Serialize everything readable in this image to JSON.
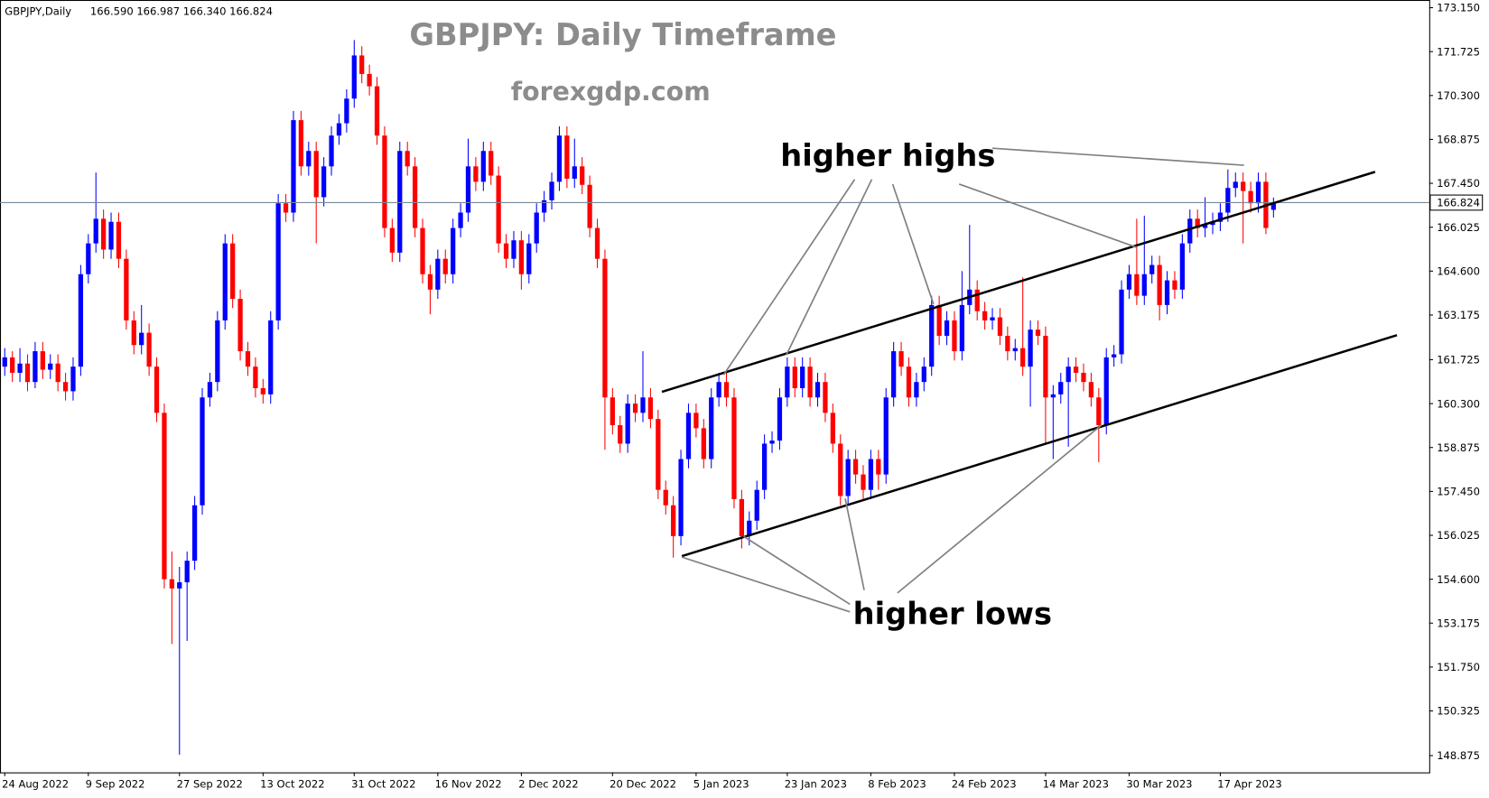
{
  "chart_data": {
    "type": "candlestick",
    "symbol": "GBPJPY,Daily",
    "header_prices": "166.590 166.987 166.340 166.824",
    "title": "GBPJPY: Daily Timeframe",
    "subtitle": "forexgdp.com",
    "annotations": [
      "higher highs",
      "higher lows"
    ],
    "up_color": "#0000ff",
    "down_color": "#ff0000",
    "current_price": 166.824,
    "ylim": [
      148.33,
      173.4
    ],
    "yticks": [
      {
        "value": 173.15,
        "label": "173.150"
      },
      171.725,
      {
        "value": 170.3,
        "label": "170.300"
      },
      168.875,
      {
        "value": 167.45,
        "label": "167.450"
      },
      166.025,
      {
        "value": 164.6,
        "label": "164.600"
      },
      163.175,
      161.725,
      {
        "value": 160.3,
        "label": "160.300"
      },
      158.875,
      {
        "value": 157.45,
        "label": "157.450"
      },
      156.025,
      {
        "value": 154.6,
        "label": "154.600"
      },
      153.175,
      {
        "value": 151.75,
        "label": "151.750"
      },
      150.325,
      148.875
    ],
    "categories": [
      "24 Aug 2022",
      null,
      null,
      null,
      null,
      null,
      null,
      null,
      null,
      null,
      null,
      "9 Sep 2022",
      null,
      null,
      null,
      null,
      null,
      null,
      null,
      null,
      null,
      null,
      null,
      "27 Sep 2022",
      null,
      null,
      null,
      null,
      null,
      null,
      null,
      null,
      null,
      null,
      "13 Oct 2022",
      null,
      null,
      null,
      null,
      null,
      null,
      null,
      null,
      null,
      null,
      null,
      "31 Oct 2022",
      null,
      null,
      null,
      null,
      null,
      null,
      null,
      null,
      null,
      null,
      "16 Nov 2022",
      null,
      null,
      null,
      null,
      null,
      null,
      null,
      null,
      null,
      null,
      "2 Dec 2022",
      null,
      null,
      null,
      null,
      null,
      null,
      null,
      null,
      null,
      null,
      null,
      "20 Dec 2022",
      null,
      null,
      null,
      null,
      null,
      null,
      null,
      null,
      null,
      null,
      "5 Jan 2023",
      null,
      null,
      null,
      null,
      null,
      null,
      null,
      null,
      null,
      null,
      null,
      "23 Jan 2023",
      null,
      null,
      null,
      null,
      null,
      null,
      null,
      null,
      null,
      null,
      "8 Feb 2023",
      null,
      null,
      null,
      null,
      null,
      null,
      null,
      null,
      null,
      null,
      "24 Feb 2023",
      null,
      null,
      null,
      null,
      null,
      null,
      null,
      null,
      null,
      null,
      null,
      "14 Mar 2023",
      null,
      null,
      null,
      null,
      null,
      null,
      null,
      null,
      null,
      null,
      "30 Mar 2023",
      null,
      null,
      null,
      null,
      null,
      null,
      null,
      null,
      null,
      null,
      null,
      "17 Apr 2023",
      null,
      null,
      null,
      null,
      null,
      null,
      null
    ],
    "ohlc": [
      [
        161.5,
        162.1,
        161.2,
        161.8
      ],
      [
        161.8,
        162.0,
        161.0,
        161.3
      ],
      [
        161.3,
        162.1,
        161.0,
        161.6
      ],
      [
        161.6,
        161.9,
        160.7,
        161.0
      ],
      [
        161.0,
        162.3,
        160.8,
        162.0
      ],
      [
        162.0,
        162.3,
        161.1,
        161.4
      ],
      [
        161.4,
        161.9,
        161.1,
        161.6
      ],
      [
        161.6,
        161.9,
        160.7,
        161.0
      ],
      [
        161.0,
        161.3,
        160.4,
        160.7
      ],
      [
        160.7,
        161.8,
        160.4,
        161.5
      ],
      [
        161.5,
        164.8,
        161.2,
        164.5
      ],
      [
        164.5,
        165.8,
        164.2,
        165.5
      ],
      [
        165.5,
        167.8,
        165.2,
        166.3
      ],
      [
        166.3,
        166.6,
        165.0,
        165.3
      ],
      [
        165.3,
        166.5,
        165.0,
        166.2
      ],
      [
        166.2,
        166.5,
        164.7,
        165.0
      ],
      [
        165.0,
        165.3,
        162.7,
        163.0
      ],
      [
        163.0,
        163.3,
        161.9,
        162.2
      ],
      [
        162.2,
        163.5,
        161.9,
        162.6
      ],
      [
        162.6,
        162.9,
        161.2,
        161.5
      ],
      [
        161.5,
        161.8,
        159.7,
        160.0
      ],
      [
        160.0,
        160.3,
        154.3,
        154.6
      ],
      [
        154.6,
        155.5,
        152.5,
        154.3
      ],
      [
        154.3,
        155.0,
        148.9,
        154.5
      ],
      [
        154.5,
        155.5,
        152.6,
        155.2
      ],
      [
        155.2,
        157.3,
        154.9,
        157.0
      ],
      [
        157.0,
        160.8,
        156.7,
        160.5
      ],
      [
        160.5,
        161.3,
        160.2,
        161.0
      ],
      [
        161.0,
        163.3,
        160.7,
        163.0
      ],
      [
        163.0,
        165.8,
        162.7,
        165.5
      ],
      [
        165.5,
        165.8,
        163.4,
        163.7
      ],
      [
        163.7,
        164.0,
        161.7,
        162.0
      ],
      [
        162.0,
        162.3,
        161.2,
        161.5
      ],
      [
        161.5,
        161.8,
        160.5,
        160.8
      ],
      [
        160.8,
        161.1,
        160.3,
        160.6
      ],
      [
        160.6,
        163.3,
        160.3,
        163.0
      ],
      [
        163.0,
        167.1,
        162.7,
        166.8
      ],
      [
        166.8,
        167.1,
        166.2,
        166.5
      ],
      [
        166.5,
        169.8,
        166.2,
        169.5
      ],
      [
        169.5,
        169.8,
        167.7,
        168.0
      ],
      [
        168.0,
        168.8,
        167.7,
        168.5
      ],
      [
        168.5,
        168.8,
        165.5,
        167.0
      ],
      [
        167.0,
        168.3,
        166.7,
        168.0
      ],
      [
        168.0,
        169.3,
        167.7,
        169.0
      ],
      [
        169.0,
        169.7,
        168.7,
        169.4
      ],
      [
        169.4,
        170.5,
        169.1,
        170.2
      ],
      [
        170.2,
        172.1,
        169.9,
        171.6
      ],
      [
        171.6,
        171.9,
        170.7,
        171.0
      ],
      [
        171.0,
        171.3,
        170.3,
        170.6
      ],
      [
        170.6,
        170.9,
        168.7,
        169.0
      ],
      [
        169.0,
        169.3,
        165.7,
        166.0
      ],
      [
        166.0,
        166.3,
        164.9,
        165.2
      ],
      [
        165.2,
        168.8,
        164.9,
        168.5
      ],
      [
        168.5,
        168.8,
        167.7,
        168.0
      ],
      [
        168.0,
        168.3,
        165.7,
        166.0
      ],
      [
        166.0,
        166.3,
        164.2,
        164.5
      ],
      [
        164.5,
        164.8,
        163.2,
        164.0
      ],
      [
        164.0,
        165.3,
        163.7,
        165.0
      ],
      [
        165.0,
        165.3,
        164.2,
        164.5
      ],
      [
        164.5,
        166.3,
        164.2,
        166.0
      ],
      [
        166.0,
        166.8,
        165.7,
        166.5
      ],
      [
        166.5,
        168.9,
        166.2,
        168.0
      ],
      [
        168.0,
        168.3,
        167.2,
        167.5
      ],
      [
        167.5,
        168.8,
        167.2,
        168.5
      ],
      [
        168.5,
        168.8,
        167.4,
        167.7
      ],
      [
        167.7,
        168.0,
        165.2,
        165.5
      ],
      [
        165.5,
        165.8,
        164.7,
        165.0
      ],
      [
        165.0,
        165.9,
        164.7,
        165.6
      ],
      [
        165.6,
        165.9,
        164.0,
        164.5
      ],
      [
        164.5,
        165.8,
        164.2,
        165.5
      ],
      [
        165.5,
        166.8,
        165.2,
        166.5
      ],
      [
        166.5,
        167.2,
        166.2,
        166.9
      ],
      [
        166.9,
        167.8,
        166.6,
        167.5
      ],
      [
        167.5,
        169.3,
        167.2,
        169.0
      ],
      [
        169.0,
        169.3,
        167.3,
        167.6
      ],
      [
        167.6,
        168.9,
        167.3,
        168.0
      ],
      [
        168.0,
        168.3,
        167.1,
        167.4
      ],
      [
        167.4,
        167.7,
        165.7,
        166.0
      ],
      [
        166.0,
        166.3,
        164.7,
        165.0
      ],
      [
        165.0,
        165.3,
        158.8,
        160.5
      ],
      [
        160.5,
        160.8,
        159.3,
        159.6
      ],
      [
        159.6,
        159.9,
        158.7,
        159.0
      ],
      [
        159.0,
        160.6,
        158.7,
        160.3
      ],
      [
        160.3,
        160.6,
        159.7,
        160.0
      ],
      [
        160.0,
        162.0,
        159.7,
        160.5
      ],
      [
        160.5,
        160.8,
        159.5,
        159.8
      ],
      [
        159.8,
        160.1,
        157.2,
        157.5
      ],
      [
        157.5,
        157.8,
        156.7,
        157.0
      ],
      [
        157.0,
        157.3,
        155.3,
        156.0
      ],
      [
        156.0,
        158.8,
        155.7,
        158.5
      ],
      [
        158.5,
        160.3,
        158.2,
        160.0
      ],
      [
        160.0,
        160.3,
        159.2,
        159.5
      ],
      [
        159.5,
        159.8,
        158.2,
        158.5
      ],
      [
        158.5,
        160.8,
        158.2,
        160.5
      ],
      [
        160.5,
        161.3,
        160.2,
        161.0
      ],
      [
        161.0,
        161.3,
        160.2,
        160.5
      ],
      [
        160.5,
        160.8,
        156.9,
        157.2
      ],
      [
        157.2,
        157.5,
        155.6,
        156.0
      ],
      [
        156.0,
        156.8,
        155.7,
        156.5
      ],
      [
        156.5,
        157.8,
        156.2,
        157.5
      ],
      [
        157.5,
        159.3,
        157.2,
        159.0
      ],
      [
        159.0,
        159.4,
        158.7,
        159.1
      ],
      [
        159.1,
        160.8,
        158.8,
        160.5
      ],
      [
        160.5,
        161.8,
        160.2,
        161.5
      ],
      [
        161.5,
        161.8,
        160.5,
        160.8
      ],
      [
        160.8,
        161.8,
        160.5,
        161.5
      ],
      [
        161.5,
        161.8,
        160.2,
        160.5
      ],
      [
        160.5,
        161.3,
        160.2,
        161.0
      ],
      [
        161.0,
        161.3,
        159.7,
        160.0
      ],
      [
        160.0,
        160.3,
        158.7,
        159.0
      ],
      [
        159.0,
        159.3,
        157.0,
        157.3
      ],
      [
        157.3,
        158.8,
        157.0,
        158.5
      ],
      [
        158.5,
        158.8,
        157.7,
        158.0
      ],
      [
        158.0,
        158.3,
        157.2,
        157.5
      ],
      [
        157.5,
        158.8,
        157.2,
        158.5
      ],
      [
        158.5,
        158.8,
        157.5,
        158.0
      ],
      [
        158.0,
        160.8,
        157.7,
        160.5
      ],
      [
        160.5,
        162.3,
        160.2,
        162.0
      ],
      [
        162.0,
        162.3,
        161.2,
        161.5
      ],
      [
        161.5,
        161.8,
        160.2,
        160.5
      ],
      [
        160.5,
        161.3,
        160.2,
        161.0
      ],
      [
        161.0,
        161.8,
        160.7,
        161.5
      ],
      [
        161.5,
        163.8,
        161.2,
        163.5
      ],
      [
        163.5,
        163.8,
        162.2,
        162.5
      ],
      [
        162.5,
        163.3,
        162.2,
        163.0
      ],
      [
        163.0,
        163.3,
        161.7,
        162.0
      ],
      [
        162.0,
        164.6,
        161.7,
        163.5
      ],
      [
        163.5,
        166.1,
        163.2,
        164.0
      ],
      [
        164.0,
        164.3,
        163.0,
        163.3
      ],
      [
        163.3,
        163.6,
        162.7,
        163.0
      ],
      [
        163.0,
        163.4,
        162.7,
        163.1
      ],
      [
        163.1,
        163.4,
        162.2,
        162.5
      ],
      [
        162.5,
        162.8,
        161.7,
        162.0
      ],
      [
        162.0,
        162.4,
        161.7,
        162.1
      ],
      [
        162.1,
        164.4,
        161.2,
        161.5
      ],
      [
        161.5,
        163.0,
        160.2,
        162.7
      ],
      [
        162.7,
        163.0,
        162.2,
        162.5
      ],
      [
        162.5,
        162.8,
        159.0,
        160.5
      ],
      [
        160.5,
        160.9,
        158.5,
        160.6
      ],
      [
        160.6,
        161.3,
        160.3,
        161.0
      ],
      [
        161.0,
        161.8,
        158.9,
        161.5
      ],
      [
        161.5,
        161.8,
        161.0,
        161.3
      ],
      [
        161.3,
        161.6,
        160.7,
        161.0
      ],
      [
        161.0,
        161.3,
        160.2,
        160.5
      ],
      [
        160.5,
        160.8,
        158.4,
        159.6
      ],
      [
        159.6,
        162.1,
        159.3,
        161.8
      ],
      [
        161.8,
        162.2,
        161.5,
        161.9
      ],
      [
        161.9,
        164.3,
        161.6,
        164.0
      ],
      [
        164.0,
        164.8,
        163.7,
        164.5
      ],
      [
        164.5,
        166.3,
        163.5,
        163.8
      ],
      [
        163.8,
        166.4,
        163.5,
        164.5
      ],
      [
        164.5,
        165.1,
        164.2,
        164.8
      ],
      [
        164.8,
        165.1,
        163.0,
        163.5
      ],
      [
        163.5,
        164.6,
        163.2,
        164.3
      ],
      [
        164.3,
        164.6,
        163.7,
        164.0
      ],
      [
        164.0,
        165.8,
        163.7,
        165.5
      ],
      [
        165.5,
        166.6,
        165.2,
        166.3
      ],
      [
        166.3,
        166.6,
        165.7,
        166.0
      ],
      [
        166.0,
        167.0,
        165.7,
        166.1
      ],
      [
        166.1,
        166.5,
        165.8,
        166.2
      ],
      [
        166.2,
        166.8,
        165.9,
        166.5
      ],
      [
        166.5,
        167.9,
        166.2,
        167.3
      ],
      [
        167.3,
        167.8,
        167.0,
        167.5
      ],
      [
        167.5,
        167.8,
        165.5,
        167.2
      ],
      [
        167.2,
        167.5,
        166.5,
        166.8
      ],
      [
        166.8,
        167.8,
        166.5,
        167.5
      ],
      [
        167.5,
        167.8,
        165.8,
        166.0
      ],
      [
        166.59,
        166.987,
        166.34,
        166.824
      ]
    ]
  }
}
